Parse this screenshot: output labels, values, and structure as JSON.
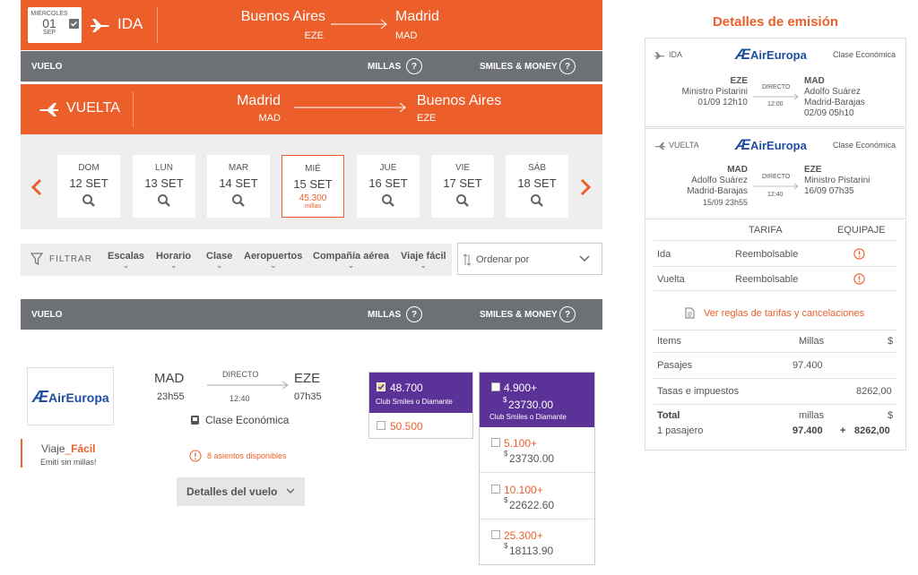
{
  "ida": {
    "weekday": "MIÉRCOLES",
    "day": "01",
    "month": "SEP",
    "label": "IDA",
    "from_city": "Buenos Aires",
    "from_code": "EZE",
    "to_city": "Madrid",
    "to_code": "MAD"
  },
  "table_header": {
    "vuelo": "VUELO",
    "millas": "MILLAS",
    "smiles_money": "SMILES & MONEY",
    "q": "?"
  },
  "vuelta": {
    "label": "VUELTA",
    "from_city": "Madrid",
    "from_code": "MAD",
    "to_city": "Buenos Aires",
    "to_code": "EZE"
  },
  "days": [
    {
      "name": "DOM",
      "date": "12 SET"
    },
    {
      "name": "LUN",
      "date": "13 SET"
    },
    {
      "name": "MAR",
      "date": "14 SET"
    },
    {
      "name": "MIÉ",
      "date": "15 SET",
      "price": "45.300",
      "unit": "millas"
    },
    {
      "name": "JUE",
      "date": "16 SET"
    },
    {
      "name": "VIE",
      "date": "17 SET"
    },
    {
      "name": "SÁB",
      "date": "18 SET"
    }
  ],
  "filters": {
    "label": "FILTRAR",
    "items": [
      "Escalas",
      "Horario",
      "Clase",
      "Aeropuertos",
      "Compañía aérea",
      "Viaje fácil"
    ],
    "sort_placeholder": "Ordenar por"
  },
  "flight": {
    "airline": "AirEuropa",
    "from": "MAD",
    "dep_time": "23h55",
    "type": "DIRECTO",
    "duration": "12:40",
    "to": "EZE",
    "arr_time": "07h35",
    "cabin": "Clase Económica",
    "seats": "8 asientos disponibles",
    "details_button": "Detalles del vuelo",
    "viaje": "Viaje",
    "facil": "Fácil",
    "emiti": "Emití sin millas!"
  },
  "fares": {
    "millas_club": "48.700",
    "club_label": "Club Smiles o Diamante",
    "millas_regular": "50.500",
    "sm_club_miles": "4.900+",
    "sm_club_money_sym": "$",
    "sm_club_money": "23730.00",
    "sm_options": [
      {
        "miles": "5.100+",
        "money": "23730.00"
      },
      {
        "miles": "10.100+",
        "money": "22622.60"
      },
      {
        "miles": "25.300+",
        "money": "18113.90"
      }
    ]
  },
  "summary": {
    "title": "Detalles de emisión",
    "ida": {
      "label": "IDA",
      "airline": "AirEuropa",
      "cabin": "Clase Económica",
      "from_code": "EZE",
      "from_name": "Ministro Pistarini",
      "from_time": "01/09 12h10",
      "type": "DIRECTO",
      "duration": "12:00",
      "to_code": "MAD",
      "to_name1": "Adolfo Suárez",
      "to_name2": "Madrid-Barajas",
      "to_time": "02/09 05h10"
    },
    "vuelta": {
      "label": "VUELTA",
      "airline": "AirEuropa",
      "cabin": "Clase Económica",
      "from_code": "MAD",
      "from_name1": "Adolfo Suárez",
      "from_name2": "Madrid-Barajas",
      "from_time": "15/09 23h55",
      "type": "DIRECTO",
      "duration": "12:40",
      "to_code": "EZE",
      "to_name": "Ministro Pistarini",
      "to_time": "16/09 07h35"
    },
    "tarifa_header": "TARIFA",
    "equipaje_header": "EQUIPAJE",
    "rows": [
      {
        "leg": "Ida",
        "tarifa": "Reembolsable"
      },
      {
        "leg": "Vuelta",
        "tarifa": "Reembolsable"
      }
    ],
    "rules_link": "Ver reglas de tarifas y cancelaciones",
    "items_header": "Items",
    "millas_header": "Millas",
    "money_header": "$",
    "pasajes_label": "Pasajes",
    "pasajes_millas": "97.400",
    "tasas_label": "Tasas e impuestos",
    "tasas_money": "8262,00",
    "total_label": "Total",
    "total_millas_label": "millas",
    "total_money_label": "$",
    "pax_label": "1 pasajero",
    "total_millas": "97.400",
    "plus": "+",
    "total_money": "8262,00"
  },
  "colors": {
    "orange": "#ec5f2a",
    "gray_bar": "#6d7075",
    "purple": "#5b3297"
  }
}
